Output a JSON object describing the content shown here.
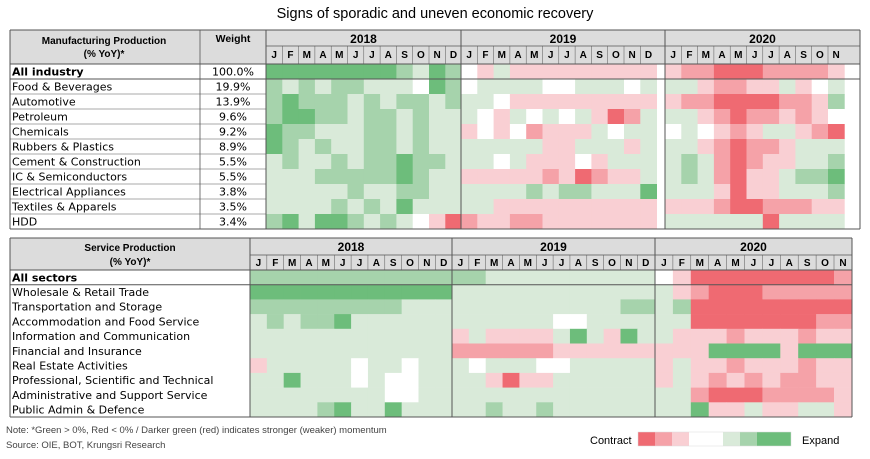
{
  "title": "Signs of sporadic and uneven economic recovery",
  "colors": {
    "neg3": "#ef6a72",
    "neg2": "#f5a2a8",
    "neg1": "#f9cfd3",
    "neutral": "#ffffff",
    "pos1": "#d9ead9",
    "pos2": "#a6d3ac",
    "pos3": "#6dbd7b",
    "header_bg": "#dcdcdc"
  },
  "legend": {
    "contract_label": "Contract",
    "expand_label": "Expand",
    "scale": [
      -3,
      -2,
      -1,
      0,
      0,
      1,
      2,
      3,
      3
    ]
  },
  "notes": [
    "Note: *Green > 0%, Red < 0% / Darker green (red) indicates stronger (weaker) momentum",
    "Source: OIE, BOT, Krungsri Research"
  ],
  "chart_data": [
    {
      "type": "heatmap",
      "title": "Manufacturing Production (% YoY)*",
      "weight_header": "Weight",
      "years": [
        {
          "label": "2018",
          "months": [
            "J",
            "F",
            "M",
            "A",
            "M",
            "J",
            "J",
            "A",
            "S",
            "O",
            "N",
            "D"
          ]
        },
        {
          "label": "2019",
          "months": [
            "J",
            "F",
            "M",
            "A",
            "M",
            "J",
            "J",
            "A",
            "S",
            "O",
            "N",
            "D"
          ]
        },
        {
          "label": "2020",
          "months": [
            "J",
            "F",
            "M",
            "A",
            "M",
            "J",
            "J",
            "A",
            "S",
            "O",
            "N"
          ]
        }
      ],
      "scale": "-3 (strong contraction) to +3 (strong expansion)",
      "rows": [
        {
          "label": "All industry",
          "bold": true,
          "weight": "100.0%",
          "values": [
            3,
            3,
            3,
            3,
            3,
            3,
            3,
            3,
            2,
            1,
            3,
            2,
            0,
            -1,
            1,
            -1,
            -1,
            -1,
            -1,
            -1,
            -1,
            -1,
            -1,
            -1,
            -1,
            -2,
            -2,
            -3,
            -3,
            -3,
            -2,
            -2,
            -2,
            -2,
            -1
          ]
        },
        {
          "label": "Food & Beverages",
          "weight": "19.9%",
          "values": [
            2,
            1,
            2,
            1,
            2,
            2,
            1,
            1,
            1,
            0,
            3,
            2,
            0,
            1,
            1,
            1,
            1,
            0,
            0,
            1,
            1,
            1,
            0,
            1,
            1,
            1,
            -1,
            -2,
            -2,
            -1,
            -1,
            1,
            -1,
            0,
            1
          ]
        },
        {
          "label": "Automotive",
          "weight": "13.9%",
          "values": [
            2,
            3,
            2,
            2,
            2,
            1,
            2,
            1,
            2,
            2,
            1,
            2,
            1,
            1,
            0,
            -1,
            -1,
            -1,
            -1,
            -1,
            -1,
            -1,
            -1,
            -1,
            -1,
            -2,
            -2,
            -3,
            -3,
            -3,
            -3,
            -2,
            -2,
            -1,
            2
          ]
        },
        {
          "label": "Petroleum",
          "weight": "9.6%",
          "values": [
            2,
            3,
            3,
            2,
            2,
            1,
            2,
            2,
            1,
            2,
            1,
            1,
            1,
            0,
            -1,
            1,
            0,
            1,
            0,
            1,
            -1,
            -3,
            -2,
            1,
            1,
            1,
            -1,
            -2,
            -3,
            -2,
            -2,
            -1,
            -2,
            -1,
            0
          ]
        },
        {
          "label": "Chemicals",
          "weight": "9.2%",
          "values": [
            3,
            2,
            2,
            1,
            1,
            1,
            2,
            2,
            1,
            2,
            1,
            1,
            -1,
            0,
            -1,
            0,
            -2,
            -1,
            -1,
            -1,
            1,
            0,
            1,
            1,
            0,
            1,
            0,
            -1,
            -2,
            -1,
            1,
            1,
            -1,
            -2,
            -3
          ]
        },
        {
          "label": "Rubbers & Plastics",
          "weight": "8.9%",
          "values": [
            3,
            2,
            1,
            2,
            1,
            1,
            2,
            2,
            1,
            2,
            1,
            1,
            1,
            1,
            1,
            1,
            1,
            -1,
            -1,
            1,
            1,
            1,
            -1,
            1,
            1,
            1,
            -1,
            -2,
            -3,
            -2,
            -2,
            -1,
            1,
            1,
            1
          ]
        },
        {
          "label": "Cement & Construction",
          "weight": "5.5%",
          "values": [
            1,
            2,
            1,
            1,
            2,
            1,
            2,
            2,
            3,
            2,
            2,
            1,
            1,
            1,
            0,
            1,
            -1,
            -1,
            -1,
            0,
            -1,
            1,
            1,
            1,
            1,
            2,
            1,
            -2,
            -3,
            -2,
            -1,
            -1,
            1,
            1,
            2
          ]
        },
        {
          "label": "IC & Semiconductors",
          "weight": "5.5%",
          "values": [
            1,
            1,
            1,
            2,
            2,
            2,
            2,
            2,
            3,
            2,
            1,
            1,
            -1,
            -1,
            -1,
            -1,
            -1,
            -2,
            -1,
            -3,
            -2,
            -1,
            -1,
            1,
            1,
            2,
            1,
            -2,
            -3,
            -1,
            -1,
            1,
            2,
            2,
            3
          ]
        },
        {
          "label": "Electrical Appliances",
          "weight": "3.8%",
          "values": [
            1,
            1,
            1,
            1,
            1,
            2,
            1,
            1,
            2,
            2,
            1,
            1,
            1,
            1,
            1,
            1,
            2,
            1,
            2,
            2,
            1,
            1,
            1,
            3,
            1,
            1,
            1,
            -1,
            -3,
            -1,
            -1,
            1,
            1,
            1,
            2
          ]
        },
        {
          "label": "Textiles & Apparels",
          "weight": "3.5%",
          "values": [
            1,
            1,
            1,
            1,
            2,
            1,
            2,
            1,
            3,
            1,
            1,
            1,
            1,
            1,
            -1,
            -1,
            -1,
            -1,
            -1,
            -1,
            -1,
            -1,
            -1,
            -1,
            -1,
            -1,
            -1,
            -2,
            -3,
            -3,
            -2,
            -2,
            -2,
            -1,
            -1
          ]
        },
        {
          "label": "HDD",
          "weight": "3.4%",
          "values": [
            2,
            3,
            1,
            3,
            3,
            2,
            1,
            2,
            1,
            0,
            -1,
            -3,
            -2,
            -1,
            -1,
            -2,
            -2,
            -1,
            -1,
            -1,
            -1,
            -1,
            -1,
            -1,
            1,
            1,
            1,
            1,
            1,
            1,
            -3,
            1,
            1,
            1,
            1
          ]
        }
      ]
    },
    {
      "type": "heatmap",
      "title": "Service Production (% YoY)*",
      "years": [
        {
          "label": "2018",
          "months": [
            "J",
            "F",
            "M",
            "A",
            "M",
            "J",
            "J",
            "A",
            "S",
            "O",
            "N",
            "D"
          ]
        },
        {
          "label": "2019",
          "months": [
            "J",
            "F",
            "M",
            "A",
            "M",
            "J",
            "J",
            "A",
            "S",
            "O",
            "N",
            "D"
          ]
        },
        {
          "label": "2020",
          "months": [
            "J",
            "F",
            "M",
            "A",
            "M",
            "J",
            "J",
            "A",
            "S",
            "O",
            "N"
          ]
        }
      ],
      "scale": "-3 (strong contraction) to +3 (strong expansion)",
      "rows": [
        {
          "label": "All sectors",
          "bold": true,
          "values": [
            2,
            2,
            2,
            2,
            2,
            2,
            2,
            2,
            2,
            2,
            2,
            2,
            2,
            2,
            1,
            1,
            1,
            1,
            1,
            1,
            1,
            1,
            1,
            1,
            0,
            -1,
            -3,
            -3,
            -3,
            -3,
            -3,
            -3,
            -3,
            -3,
            -2
          ]
        },
        {
          "label": "Wholesale & Retail Trade",
          "values": [
            3,
            3,
            3,
            3,
            3,
            3,
            3,
            3,
            3,
            3,
            3,
            3,
            1,
            1,
            1,
            1,
            1,
            1,
            1,
            1,
            1,
            1,
            1,
            1,
            1,
            -1,
            -2,
            -3,
            -3,
            -3,
            -2,
            -2,
            -2,
            -2,
            -2
          ]
        },
        {
          "label": "Transportation and Storage",
          "values": [
            2,
            2,
            2,
            2,
            2,
            2,
            2,
            2,
            2,
            1,
            1,
            1,
            1,
            1,
            1,
            1,
            1,
            1,
            1,
            1,
            1,
            1,
            2,
            2,
            1,
            2,
            -3,
            -3,
            -3,
            -3,
            -3,
            -3,
            -3,
            -3,
            -3
          ]
        },
        {
          "label": "Accommodation and Food Service",
          "values": [
            1,
            2,
            1,
            2,
            2,
            3,
            1,
            1,
            1,
            1,
            1,
            1,
            1,
            1,
            1,
            1,
            1,
            1,
            0,
            0,
            1,
            1,
            1,
            1,
            1,
            1,
            -3,
            -3,
            -3,
            -3,
            -3,
            -3,
            -3,
            -2,
            -2
          ]
        },
        {
          "label": "Information and Communication",
          "values": [
            1,
            1,
            1,
            1,
            1,
            1,
            1,
            1,
            1,
            1,
            1,
            1,
            -1,
            1,
            -1,
            -1,
            -1,
            -1,
            1,
            3,
            1,
            -1,
            3,
            1,
            1,
            -1,
            -1,
            -1,
            -2,
            -1,
            -1,
            -1,
            -2,
            -1,
            -1
          ]
        },
        {
          "label": "Financial and Insurance",
          "values": [
            1,
            1,
            1,
            1,
            1,
            1,
            1,
            1,
            1,
            1,
            1,
            1,
            -2,
            -2,
            -2,
            -2,
            -2,
            -2,
            -1,
            -1,
            -1,
            -1,
            -1,
            -1,
            -1,
            -1,
            -1,
            3,
            3,
            3,
            3,
            -1,
            3,
            3,
            3
          ]
        },
        {
          "label": "Real Estate Activities",
          "values": [
            -1,
            1,
            1,
            1,
            1,
            1,
            0,
            1,
            1,
            0,
            1,
            1,
            1,
            0,
            1,
            1,
            1,
            0,
            0,
            1,
            1,
            1,
            1,
            1,
            -1,
            1,
            -1,
            -1,
            -2,
            -1,
            -1,
            -1,
            -2,
            -1,
            -1
          ]
        },
        {
          "label": "Professional, Scientific and Technical",
          "values": [
            1,
            1,
            3,
            1,
            1,
            1,
            0,
            1,
            0,
            0,
            1,
            1,
            1,
            1,
            -1,
            -3,
            -1,
            -1,
            1,
            1,
            1,
            1,
            1,
            1,
            -1,
            1,
            -1,
            -2,
            -1,
            -2,
            -1,
            -2,
            -2,
            -1,
            -1
          ]
        },
        {
          "label": "Administrative and Support Service",
          "values": [
            1,
            1,
            1,
            1,
            1,
            1,
            1,
            1,
            0,
            0,
            1,
            1,
            1,
            1,
            1,
            1,
            1,
            1,
            1,
            1,
            1,
            1,
            1,
            1,
            1,
            1,
            -2,
            -3,
            -3,
            -3,
            -2,
            -2,
            -2,
            -2,
            -1
          ]
        },
        {
          "label": "Public Admin & Defence",
          "values": [
            1,
            1,
            1,
            1,
            2,
            3,
            1,
            1,
            3,
            1,
            1,
            1,
            1,
            1,
            2,
            1,
            1,
            2,
            1,
            1,
            1,
            1,
            1,
            1,
            1,
            1,
            3,
            -1,
            -1,
            1,
            -1,
            -1,
            1,
            1,
            -1
          ]
        }
      ]
    }
  ]
}
